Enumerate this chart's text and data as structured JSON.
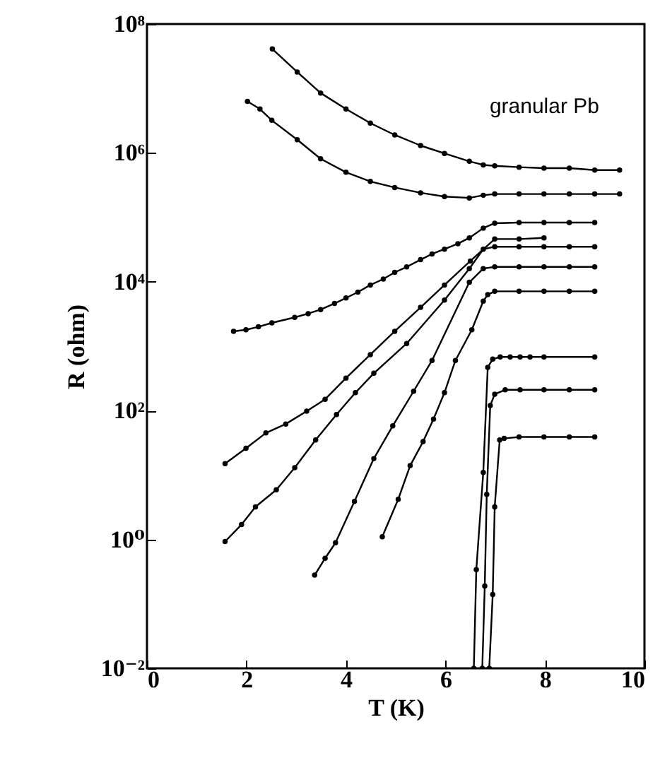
{
  "chart_data": {
    "type": "line",
    "xlabel": "T (K)",
    "ylabel": "R (ohm)",
    "annotations": [
      "granular Pb"
    ],
    "log": "y",
    "marker": "circle",
    "line_style": "solid",
    "grid": false,
    "xlim": [
      0,
      10
    ],
    "xticks": [
      0,
      2,
      4,
      6,
      8,
      10
    ],
    "ylim": [
      0.01,
      100000000
    ],
    "yticks": [
      {
        "value": 0.01,
        "label": "10⁻²"
      },
      {
        "value": 1,
        "label": "10⁰"
      },
      {
        "value": 100,
        "label": "10²"
      },
      {
        "value": 10000,
        "label": "10⁴"
      },
      {
        "value": 1000000,
        "label": "10⁶"
      },
      {
        "value": 100000000,
        "label": "10⁸"
      }
    ],
    "series": [
      {
        "color": "#000000",
        "x": [
          2.52,
          3.02,
          3.49,
          4.0,
          4.49,
          4.98,
          5.5,
          5.98,
          6.48,
          6.76,
          6.99,
          7.48,
          7.98,
          8.49,
          9.0,
          9.5
        ],
        "values": [
          41000000.0,
          18000000.0,
          8500000.0,
          4800000.0,
          2900000.0,
          1900000.0,
          1300000.0,
          980000.0,
          740000.0,
          650000.0,
          630000.0,
          600000.0,
          580000.0,
          580000.0,
          540000.0,
          540000.0
        ]
      },
      {
        "color": "#000000",
        "x": [
          2.02,
          2.27,
          2.51,
          3.02,
          3.49,
          4.0,
          4.49,
          4.98,
          5.5,
          5.98,
          6.48,
          6.76,
          6.99,
          7.48,
          7.98,
          8.49,
          9.0,
          9.5
        ],
        "values": [
          6300000.0,
          4800000.0,
          3200000.0,
          1600000.0,
          810000.0,
          500000.0,
          360000.0,
          290000.0,
          240000.0,
          210000.0,
          200000.0,
          220000.0,
          230000.0,
          230000.0,
          230000.0,
          230000.0,
          230000.0,
          230000.0
        ]
      },
      {
        "color": "#000000",
        "x": [
          1.74,
          1.99,
          2.24,
          2.51,
          2.97,
          3.24,
          3.49,
          3.77,
          4.0,
          4.24,
          4.49,
          4.75,
          4.98,
          5.22,
          5.5,
          5.73,
          5.98,
          6.25,
          6.48,
          6.76,
          6.99,
          7.48,
          7.98,
          8.49,
          9.0
        ],
        "values": [
          1700.0,
          1800.0,
          2000.0,
          2300.0,
          2800.0,
          3200.0,
          3700.0,
          4600.0,
          5600.0,
          6900.0,
          8900.0,
          11000.0,
          14000.0,
          17000.0,
          22000.0,
          27000.0,
          32000.0,
          39000.0,
          48000.0,
          68000.0,
          81000.0,
          83000.0,
          83000.0,
          83000.0,
          83000.0
        ]
      },
      {
        "color": "#000000",
        "x": [
          1.57,
          1.99,
          2.39,
          2.79,
          3.21,
          3.58,
          4.0,
          4.49,
          4.98,
          5.5,
          5.98,
          6.5,
          6.99,
          7.48,
          7.98
        ],
        "values": [
          15,
          26,
          45,
          62,
          98,
          150,
          320,
          740,
          1700.0,
          4000.0,
          8900.0,
          21000.0,
          46000.0,
          46000.0,
          48000.0
        ]
      },
      {
        "color": "#000000",
        "x": [
          1.57,
          1.9,
          2.18,
          2.6,
          2.97,
          3.39,
          3.81,
          4.19,
          4.56,
          5.22,
          5.98,
          6.48,
          6.76,
          6.99,
          7.48,
          7.98,
          8.49,
          9.0
        ],
        "values": [
          0.93,
          1.7,
          3.2,
          5.9,
          13,
          35,
          87,
          190,
          380,
          1100.0,
          5200.0,
          16000.0,
          32000.0,
          35000.0,
          35000.0,
          35000.0,
          35000.0,
          35000.0
        ]
      },
      {
        "color": "#000000",
        "x": [
          3.37,
          3.58,
          3.79,
          4.17,
          4.56,
          4.94,
          5.36,
          5.73,
          6.48,
          6.76,
          6.99,
          7.48,
          7.98,
          8.49,
          9.0
        ],
        "values": [
          0.28,
          0.51,
          0.89,
          3.9,
          18,
          58,
          200,
          600,
          9800.0,
          16000.0,
          17000.0,
          17000.0,
          17000.0,
          17000.0,
          17000.0
        ]
      },
      {
        "color": "#000000",
        "x": [
          4.73,
          5.05,
          5.29,
          5.55,
          5.76,
          5.98,
          6.2,
          6.53,
          6.76,
          6.85,
          6.99,
          7.48,
          7.98,
          8.49,
          9.0
        ],
        "values": [
          1.1,
          4.2,
          14,
          33,
          74,
          190,
          600,
          1800.0,
          5000.0,
          6300.0,
          7100.0,
          7100.0,
          7100.0,
          7100.0,
          7100.0
        ]
      },
      {
        "color": "#000000",
        "x": [
          6.57,
          6.62,
          6.76,
          6.85,
          6.95,
          7.1,
          7.3,
          7.5,
          7.7,
          7.98,
          9.0
        ],
        "values": [
          0.01,
          0.34,
          11,
          470,
          630,
          680,
          680,
          680,
          680,
          680,
          680
        ]
      },
      {
        "color": "#000000",
        "x": [
          6.74,
          6.79,
          6.83,
          6.9,
          6.99,
          7.2,
          7.5,
          7.98,
          8.49,
          9.0
        ],
        "values": [
          0.01,
          0.19,
          5.0,
          120,
          180,
          210,
          210,
          210,
          210,
          210
        ]
      },
      {
        "color": "#000000",
        "x": [
          6.88,
          6.95,
          6.99,
          7.09,
          7.18,
          7.48,
          7.98,
          8.49,
          9.0
        ],
        "values": [
          0.01,
          0.14,
          3.2,
          35,
          37,
          39,
          39,
          39,
          39
        ]
      }
    ]
  }
}
